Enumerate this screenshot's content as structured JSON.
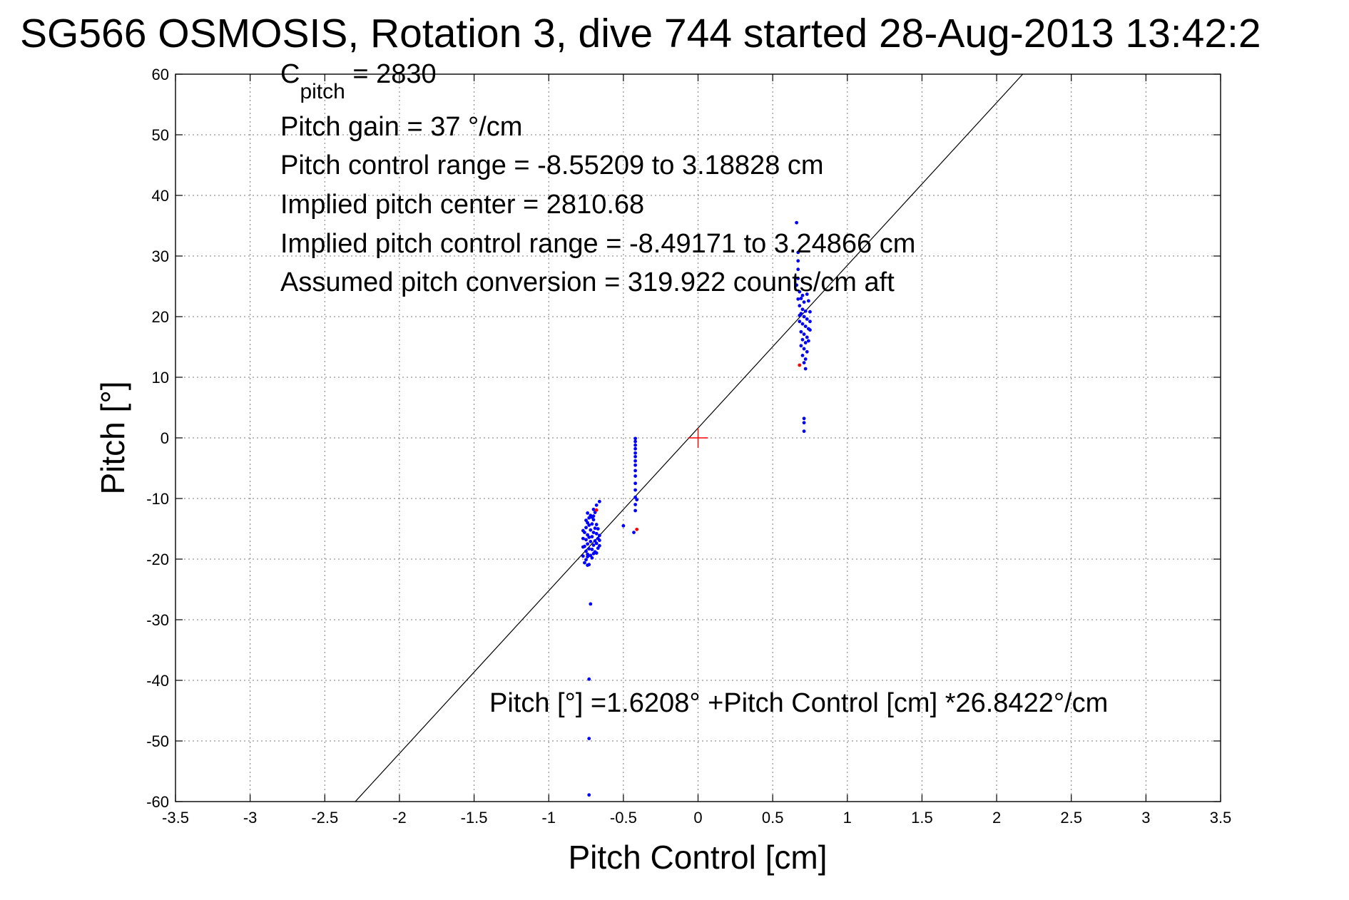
{
  "chart_data": {
    "type": "scatter",
    "title": "SG566 OSMOSIS, Rotation 3, dive 744 started 28-Aug-2013 13:42:2",
    "xlabel": "Pitch Control [cm]",
    "ylabel": "Pitch [°]",
    "xlim": [
      -3.5,
      3.5
    ],
    "ylim": [
      -60,
      60
    ],
    "xticks": [
      "-3.5",
      "-3",
      "-2.5",
      "-2",
      "-1.5",
      "-1",
      "-0.5",
      "0",
      "0.5",
      "1",
      "1.5",
      "2",
      "2.5",
      "3",
      "3.5"
    ],
    "yticks": [
      "60",
      "50",
      "40",
      "30",
      "20",
      "10",
      "0",
      "-10",
      "-20",
      "-30",
      "-40",
      "-50",
      "-60"
    ],
    "grid": true,
    "annotations": {
      "c_pitch_main": "C",
      "c_pitch_sub": "pitch",
      "c_pitch_value": " = 2830",
      "pitch_gain": "Pitch gain = 37 °/cm",
      "pitch_control_range": "Pitch control range = -8.55209 to 3.18828 cm",
      "implied_pitch_center": "Implied pitch center = 2810.68",
      "implied_pitch_control_range": "Implied pitch control range = -8.49171 to 3.24866 cm",
      "assumed_pitch_conversion": "Assumed pitch conversion = 319.922 counts/cm aft",
      "fit_equation": "Pitch [°] =1.6208° +Pitch Control [cm] *26.8422°/cm"
    },
    "fit_line": {
      "intercept": 1.6208,
      "slope": 26.8422,
      "color": "#000000"
    },
    "center_marker": {
      "x": 0,
      "y": 0,
      "color": "#ff0000"
    },
    "series": [
      {
        "color": "#0000ff",
        "points": [
          [
            -0.75,
            -20.1
          ],
          [
            -0.74,
            -19.6
          ],
          [
            -0.74,
            -19.2
          ],
          [
            -0.75,
            -18.7
          ],
          [
            -0.73,
            -18.3
          ],
          [
            -0.76,
            -17.9
          ],
          [
            -0.74,
            -17.5
          ],
          [
            -0.72,
            -17.1
          ],
          [
            -0.75,
            -16.8
          ],
          [
            -0.73,
            -16.4
          ],
          [
            -0.74,
            -16.0
          ],
          [
            -0.76,
            -15.6
          ],
          [
            -0.72,
            -15.2
          ],
          [
            -0.75,
            -14.8
          ],
          [
            -0.73,
            -14.4
          ],
          [
            -0.74,
            -14.0
          ],
          [
            -0.75,
            -13.6
          ],
          [
            -0.73,
            -13.2
          ],
          [
            -0.72,
            -12.8
          ],
          [
            -0.74,
            -12.4
          ],
          [
            -0.71,
            -19.8
          ],
          [
            -0.7,
            -19.1
          ],
          [
            -0.71,
            -18.4
          ],
          [
            -0.7,
            -17.7
          ],
          [
            -0.69,
            -17.0
          ],
          [
            -0.71,
            -16.3
          ],
          [
            -0.7,
            -15.6
          ],
          [
            -0.69,
            -14.9
          ],
          [
            -0.71,
            -14.2
          ],
          [
            -0.7,
            -13.5
          ],
          [
            -0.68,
            -19.0
          ],
          [
            -0.67,
            -18.2
          ],
          [
            -0.68,
            -17.4
          ],
          [
            -0.67,
            -16.6
          ],
          [
            -0.68,
            -15.8
          ],
          [
            -0.67,
            -15.0
          ],
          [
            -0.68,
            -14.3
          ],
          [
            -0.66,
            -17.8
          ],
          [
            -0.66,
            -16.9
          ],
          [
            -0.66,
            -16.1
          ],
          [
            -0.77,
            -19.5
          ],
          [
            -0.77,
            -18.0
          ],
          [
            -0.77,
            -16.6
          ],
          [
            -0.77,
            -15.3
          ],
          [
            -0.76,
            -20.6
          ],
          [
            -0.73,
            -20.9
          ],
          [
            -0.72,
            -19.4
          ],
          [
            -0.69,
            -18.8
          ],
          [
            -0.74,
            -21.0
          ],
          [
            -0.7,
            -12.9
          ],
          [
            -0.69,
            -12.3
          ],
          [
            -0.7,
            -11.8
          ],
          [
            -0.68,
            -11.1
          ],
          [
            -0.66,
            -10.5
          ],
          [
            -0.71,
            -13.1
          ],
          [
            -0.72,
            -27.4
          ],
          [
            -0.73,
            -39.8
          ],
          [
            -0.73,
            -49.6
          ],
          [
            -0.73,
            -58.9
          ],
          [
            -0.5,
            -14.5
          ],
          [
            -0.42,
            -0.1
          ],
          [
            -0.42,
            -0.6
          ],
          [
            -0.42,
            -1.2
          ],
          [
            -0.42,
            -1.8
          ],
          [
            -0.42,
            -2.5
          ],
          [
            -0.42,
            -3.1
          ],
          [
            -0.42,
            -3.8
          ],
          [
            -0.42,
            -4.5
          ],
          [
            -0.42,
            -5.4
          ],
          [
            -0.42,
            -6.3
          ],
          [
            -0.42,
            -7.5
          ],
          [
            -0.42,
            -8.6
          ],
          [
            -0.42,
            -9.8
          ],
          [
            -0.41,
            -10.2
          ],
          [
            -0.42,
            -11.0
          ],
          [
            -0.42,
            -12.0
          ],
          [
            -0.43,
            -15.6
          ],
          [
            0.66,
            35.5
          ],
          [
            0.67,
            30.6
          ],
          [
            0.67,
            29.2
          ],
          [
            0.67,
            27.8
          ],
          [
            0.67,
            26.3
          ],
          [
            0.66,
            25.2
          ],
          [
            0.68,
            24.1
          ],
          [
            0.7,
            23.5
          ],
          [
            0.69,
            23.0
          ],
          [
            0.71,
            22.4
          ],
          [
            0.68,
            21.8
          ],
          [
            0.7,
            21.2
          ],
          [
            0.72,
            20.9
          ],
          [
            0.69,
            20.5
          ],
          [
            0.71,
            20.0
          ],
          [
            0.73,
            19.6
          ],
          [
            0.68,
            19.2
          ],
          [
            0.7,
            18.8
          ],
          [
            0.72,
            18.4
          ],
          [
            0.74,
            18.0
          ],
          [
            0.69,
            17.5
          ],
          [
            0.71,
            17.1
          ],
          [
            0.73,
            16.6
          ],
          [
            0.7,
            16.2
          ],
          [
            0.72,
            15.7
          ],
          [
            0.69,
            15.2
          ],
          [
            0.71,
            14.7
          ],
          [
            0.73,
            14.2
          ],
          [
            0.7,
            13.6
          ],
          [
            0.72,
            13.0
          ],
          [
            0.71,
            12.4
          ],
          [
            0.72,
            11.4
          ],
          [
            0.74,
            22.6
          ],
          [
            0.75,
            20.8
          ],
          [
            0.75,
            19.2
          ],
          [
            0.75,
            17.8
          ],
          [
            0.67,
            22.9
          ],
          [
            0.68,
            20.2
          ],
          [
            0.74,
            16.0
          ],
          [
            0.73,
            23.7
          ],
          [
            0.71,
            3.2
          ],
          [
            0.71,
            2.5
          ],
          [
            0.71,
            1.1
          ]
        ]
      },
      {
        "color": "#ff0000",
        "points": [
          [
            -0.68,
            -11.9
          ],
          [
            -0.41,
            -15.1
          ],
          [
            0.68,
            12.0
          ]
        ]
      }
    ]
  }
}
